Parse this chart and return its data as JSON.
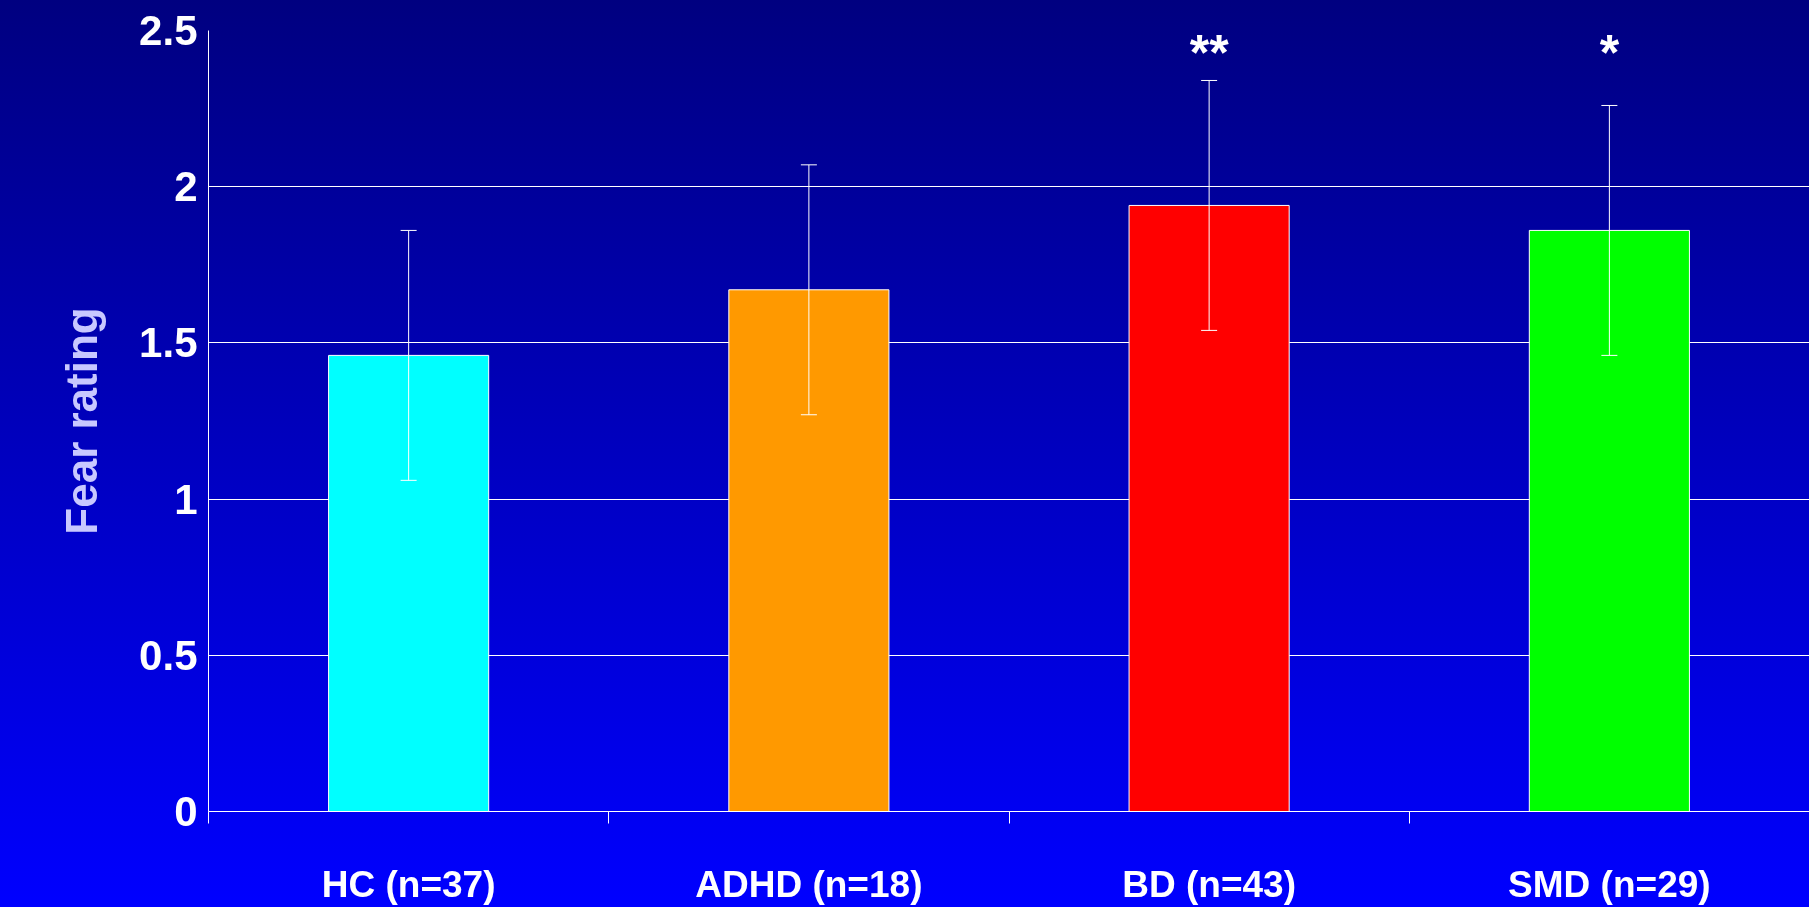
{
  "chart_data": {
    "type": "bar",
    "ylabel": "Fear rating",
    "categories": [
      "HC (n=37)",
      "ADHD (n=18)",
      "BD (n=43)",
      "SMD (n=29)"
    ],
    "values": [
      1.46,
      1.67,
      1.94,
      1.86
    ],
    "colors": [
      "#00ffff",
      "#ff9900",
      "#ff0000",
      "#00ff00"
    ],
    "errors": [
      0.4,
      0.4,
      0.4,
      0.4
    ],
    "ylim": [
      0,
      2.5
    ],
    "yticks": [
      0,
      0.5,
      1,
      1.5,
      2,
      2.5
    ],
    "grid": "y",
    "annotations": [
      "**",
      "*"
    ]
  }
}
